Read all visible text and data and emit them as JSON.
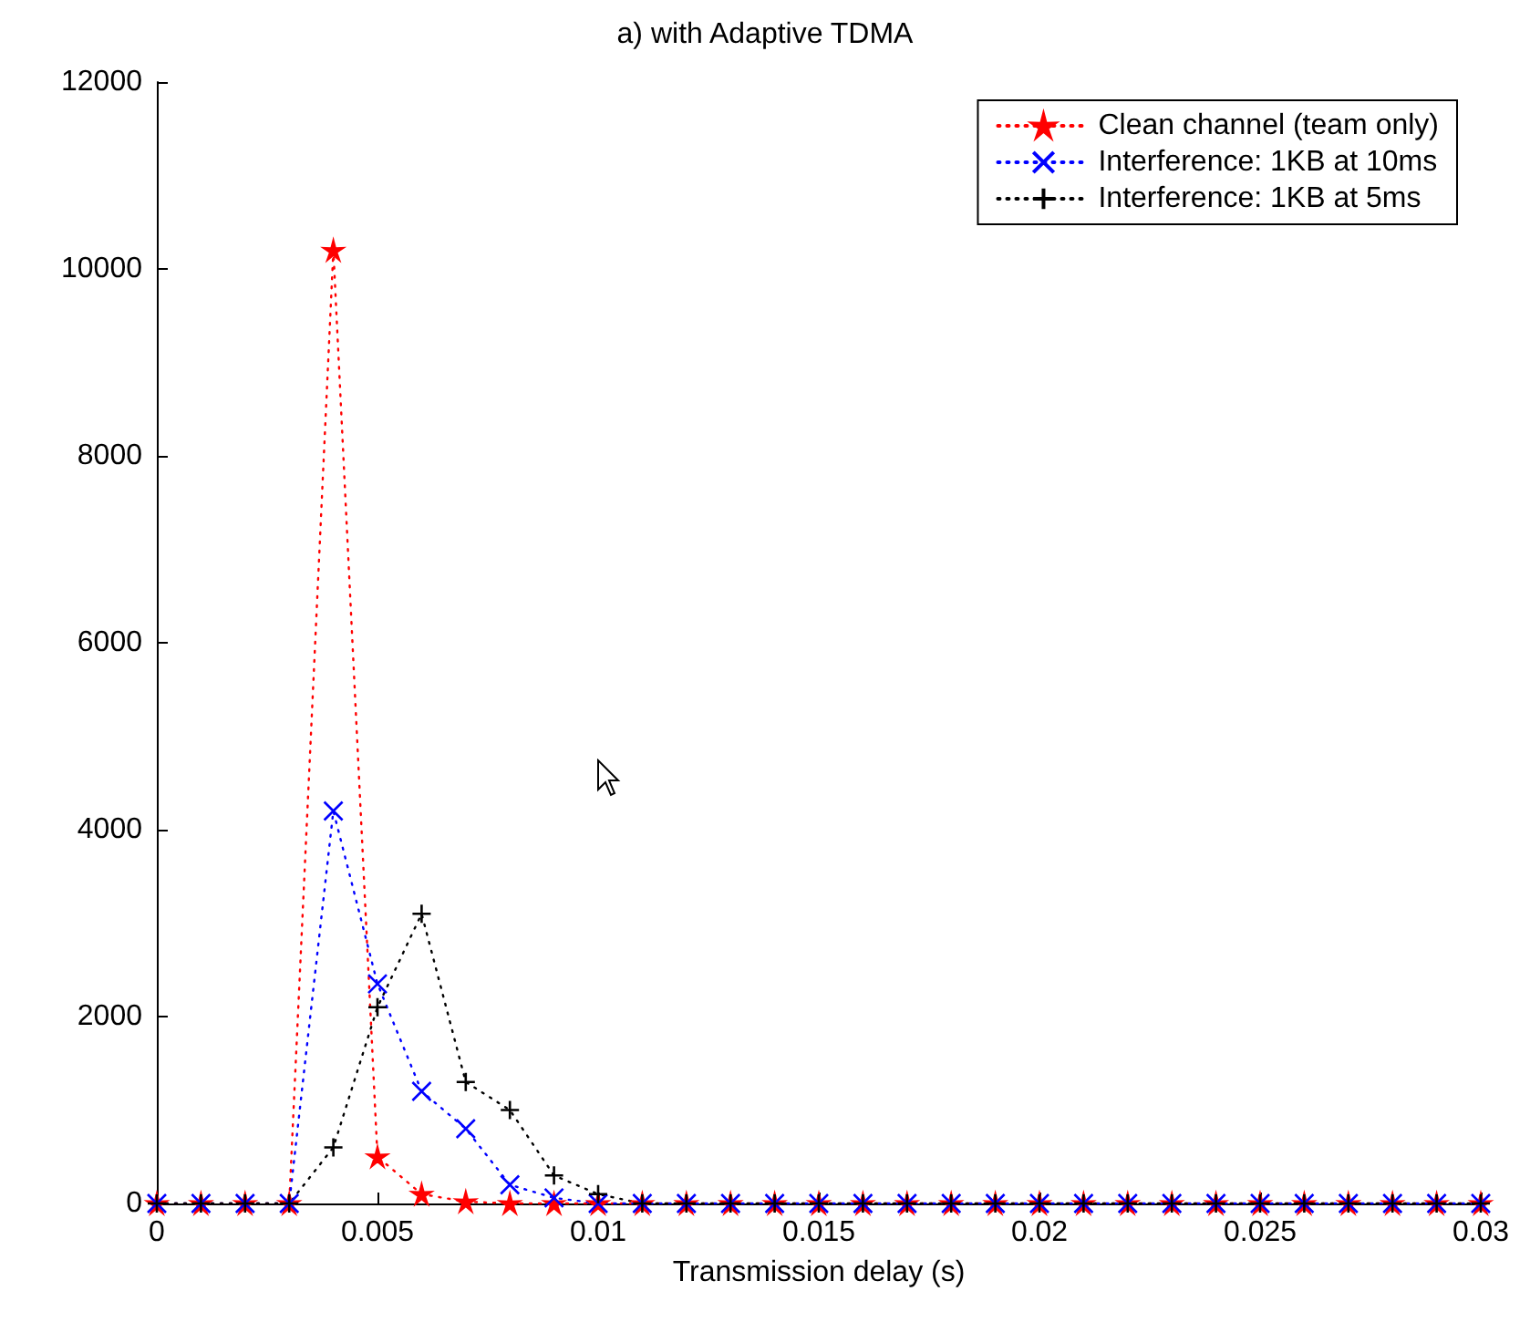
{
  "chart_data": {
    "type": "line",
    "title": "a) with Adaptive TDMA",
    "xlabel": "Transmission delay (s)",
    "x": [
      0,
      0.001,
      0.002,
      0.003,
      0.004,
      0.005,
      0.006,
      0.007,
      0.008,
      0.009,
      0.01,
      0.011,
      0.012,
      0.013,
      0.014,
      0.015,
      0.016,
      0.017,
      0.018,
      0.019,
      0.02,
      0.021,
      0.022,
      0.023,
      0.024,
      0.025,
      0.026,
      0.027,
      0.028,
      0.029,
      0.03
    ],
    "series": [
      {
        "name": "Clean channel (team only)",
        "color": "#ff0000",
        "marker": "star",
        "values": [
          0,
          0,
          0,
          0,
          10200,
          500,
          100,
          20,
          0,
          0,
          0,
          0,
          0,
          0,
          0,
          0,
          0,
          0,
          0,
          0,
          0,
          0,
          0,
          0,
          0,
          0,
          0,
          0,
          0,
          0,
          0
        ]
      },
      {
        "name": "Interference: 1KB at 10ms",
        "color": "#0000ff",
        "marker": "x",
        "values": [
          0,
          0,
          0,
          0,
          4200,
          2350,
          1200,
          800,
          200,
          60,
          0,
          0,
          0,
          0,
          0,
          0,
          0,
          0,
          0,
          0,
          0,
          0,
          0,
          0,
          0,
          0,
          0,
          0,
          0,
          0,
          0
        ]
      },
      {
        "name": "Interference: 1KB at 5ms",
        "color": "#000000",
        "marker": "cross",
        "values": [
          0,
          0,
          0,
          0,
          600,
          2100,
          3100,
          1300,
          1000,
          300,
          100,
          0,
          0,
          0,
          0,
          0,
          0,
          0,
          0,
          0,
          0,
          0,
          0,
          0,
          0,
          0,
          0,
          0,
          0,
          0,
          0
        ]
      }
    ],
    "xlim": [
      0,
      0.03
    ],
    "xticks": [
      0,
      0.005,
      0.01,
      0.015,
      0.02,
      0.025,
      0.03
    ],
    "ylim": [
      0,
      12000
    ],
    "yticks": [
      0,
      2000,
      4000,
      6000,
      8000,
      10000,
      12000
    ],
    "line_style": "dotted",
    "legend": "top right",
    "grid": false
  }
}
